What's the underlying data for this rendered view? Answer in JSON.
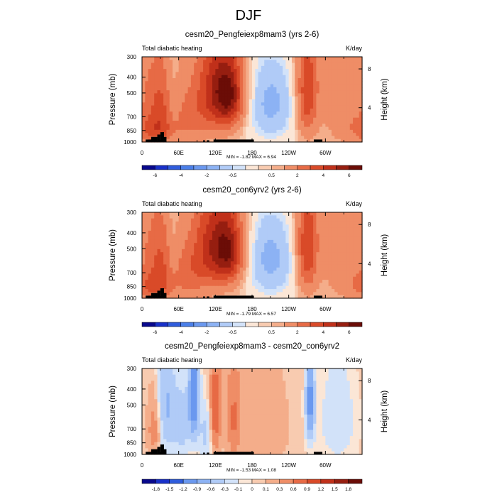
{
  "page_title": "DJF",
  "colors": {
    "blue_scale": [
      "#08088c",
      "#1830c8",
      "#2f5cdc",
      "#4a7ee8",
      "#6a98ef",
      "#8cb2f4",
      "#b0cbf7",
      "#d2e2f9"
    ],
    "red_scale": [
      "#fbe6d6",
      "#f8cbb0",
      "#f4ad8a",
      "#ef8d66",
      "#e76a45",
      "#d94a28",
      "#c0301a",
      "#961e10",
      "#6b0d07"
    ],
    "topography": "#000000"
  },
  "chart_data": [
    {
      "type": "heatmap",
      "title": "cesm20_Pengfeiexp8mam3 (yrs 2-6)",
      "left_label": "Total diabatic heating",
      "right_label": "K/day",
      "ylabel": "Pressure (mb)",
      "ylabel_right": "Height (km)",
      "x_tick_labels": [
        "0",
        "60E",
        "120E",
        "180",
        "120W",
        "60W"
      ],
      "x_ticks_deg": [
        0,
        60,
        120,
        180,
        240,
        300
      ],
      "xlim": [
        0,
        360
      ],
      "y_tick_labels": [
        "300",
        "400",
        "500",
        "700",
        "850",
        "1000"
      ],
      "y_ticks_mb": [
        300,
        400,
        500,
        700,
        850,
        1000
      ],
      "ylim": [
        1000,
        300
      ],
      "y_scale": "log",
      "right_tick_labels": [
        "8",
        "4"
      ],
      "stats": "MIN =  -1.82  MAX =   6.94",
      "colorbar_labels": [
        "-6",
        "-4",
        "-2",
        "-0.5",
        "0.5",
        "2",
        "4",
        "6"
      ],
      "colorbar_levels": [
        -6,
        -5,
        -4,
        -3,
        -2,
        -1,
        -0.5,
        -0.25,
        0.25,
        0.5,
        1,
        2,
        3,
        4,
        5,
        6
      ],
      "min": -1.82,
      "max": 6.94,
      "scale": 1.0,
      "features": [
        {
          "lon": 125,
          "p": 480,
          "amp": 4.2,
          "wlon": 24,
          "wp": 230
        },
        {
          "lon": 145,
          "p": 520,
          "amp": 3.2,
          "wlon": 16,
          "wp": 170
        },
        {
          "lon": 270,
          "p": 500,
          "amp": 3.5,
          "wlon": 12,
          "wp": 260
        },
        {
          "lon": 30,
          "p": 620,
          "amp": 2.6,
          "wlon": 18,
          "wp": 260
        },
        {
          "lon": 15,
          "p": 850,
          "amp": 1.8,
          "wlon": 28,
          "wp": 110
        },
        {
          "lon": 80,
          "p": 700,
          "amp": 1.4,
          "wlon": 20,
          "wp": 200
        },
        {
          "lon": 210,
          "p": 550,
          "amp": -1.8,
          "wlon": 35,
          "wp": 300
        },
        {
          "lon": 50,
          "p": 500,
          "amp": -0.9,
          "wlon": 8,
          "wp": 280
        },
        {
          "lon": 330,
          "p": 500,
          "amp": 1.2,
          "wlon": 25,
          "wp": 300
        }
      ]
    },
    {
      "type": "heatmap",
      "title": "cesm20_con6yrv2 (yrs 2-6)",
      "left_label": "Total diabatic heating",
      "right_label": "K/day",
      "ylabel": "Pressure (mb)",
      "ylabel_right": "Height (km)",
      "x_tick_labels": [
        "0",
        "60E",
        "120E",
        "180",
        "120W",
        "60W"
      ],
      "x_ticks_deg": [
        0,
        60,
        120,
        180,
        240,
        300
      ],
      "xlim": [
        0,
        360
      ],
      "y_tick_labels": [
        "300",
        "400",
        "500",
        "700",
        "850",
        "1000"
      ],
      "y_ticks_mb": [
        300,
        400,
        500,
        700,
        850,
        1000
      ],
      "ylim": [
        1000,
        300
      ],
      "y_scale": "log",
      "right_tick_labels": [
        "8",
        "4"
      ],
      "stats": "MIN =  -1.79  MAX =   6.57",
      "colorbar_labels": [
        "-6",
        "-4",
        "-2",
        "-0.5",
        "0.5",
        "2",
        "4",
        "6"
      ],
      "colorbar_levels": [
        -6,
        -5,
        -4,
        -3,
        -2,
        -1,
        -0.5,
        -0.25,
        0.25,
        0.5,
        1,
        2,
        3,
        4,
        5,
        6
      ],
      "min": -1.79,
      "max": 6.57,
      "scale": 1.0,
      "features": [
        {
          "lon": 120,
          "p": 480,
          "amp": 4.0,
          "wlon": 24,
          "wp": 230
        },
        {
          "lon": 145,
          "p": 520,
          "amp": 3.4,
          "wlon": 16,
          "wp": 170
        },
        {
          "lon": 270,
          "p": 500,
          "amp": 3.6,
          "wlon": 12,
          "wp": 260
        },
        {
          "lon": 30,
          "p": 620,
          "amp": 2.5,
          "wlon": 18,
          "wp": 260
        },
        {
          "lon": 15,
          "p": 850,
          "amp": 1.7,
          "wlon": 28,
          "wp": 110
        },
        {
          "lon": 80,
          "p": 700,
          "amp": 1.6,
          "wlon": 20,
          "wp": 200
        },
        {
          "lon": 210,
          "p": 550,
          "amp": -1.8,
          "wlon": 35,
          "wp": 300
        },
        {
          "lon": 50,
          "p": 500,
          "amp": -0.9,
          "wlon": 8,
          "wp": 280
        },
        {
          "lon": 330,
          "p": 500,
          "amp": 1.1,
          "wlon": 25,
          "wp": 300
        }
      ]
    },
    {
      "type": "heatmap",
      "title": "cesm20_Pengfeiexp8mam3 - cesm20_con6yrv2",
      "left_label": "Total diabatic heating",
      "right_label": "K/day",
      "ylabel": "Pressure (mb)",
      "ylabel_right": "Height (km)",
      "x_tick_labels": [
        "0",
        "60E",
        "120E",
        "180",
        "120W",
        "60W"
      ],
      "x_ticks_deg": [
        0,
        60,
        120,
        180,
        240,
        300
      ],
      "xlim": [
        0,
        360
      ],
      "y_tick_labels": [
        "300",
        "400",
        "500",
        "700",
        "850",
        "1000"
      ],
      "y_ticks_mb": [
        300,
        400,
        500,
        700,
        850,
        1000
      ],
      "ylim": [
        1000,
        300
      ],
      "y_scale": "log",
      "right_tick_labels": [
        "8",
        "4"
      ],
      "stats": "MIN =  -1.53  MAX =   1.08",
      "colorbar_labels": [
        "-1.8",
        "-1.5",
        "-1.2",
        "-0.9",
        "-0.6",
        "-0.3",
        "-0.1",
        "0",
        "0.1",
        "0.3",
        "0.6",
        "0.9",
        "1.2",
        "1.5",
        "1.8"
      ],
      "colorbar_levels": [
        -1.8,
        -1.5,
        -1.2,
        -0.9,
        -0.6,
        -0.3,
        -0.1,
        0,
        0.1,
        0.3,
        0.6,
        0.9,
        1.2,
        1.5,
        1.8
      ],
      "min": -1.53,
      "max": 1.08,
      "scale": 0.3,
      "features": [
        {
          "lon": 85,
          "p": 450,
          "amp": -4.2,
          "wlon": 6,
          "wp": 220
        },
        {
          "lon": 120,
          "p": 550,
          "amp": 3.0,
          "wlon": 6,
          "wp": 250
        },
        {
          "lon": 275,
          "p": 480,
          "amp": -3.8,
          "wlon": 5,
          "wp": 220
        },
        {
          "lon": 40,
          "p": 500,
          "amp": -2.2,
          "wlon": 10,
          "wp": 300
        },
        {
          "lon": 150,
          "p": 600,
          "amp": 2.0,
          "wlon": 8,
          "wp": 280
        },
        {
          "lon": 20,
          "p": 700,
          "amp": 1.5,
          "wlon": 8,
          "wp": 200
        },
        {
          "lon": 65,
          "p": 650,
          "amp": -1.6,
          "wlon": 10,
          "wp": 250
        },
        {
          "lon": 320,
          "p": 600,
          "amp": -1.0,
          "wlon": 20,
          "wp": 300
        },
        {
          "lon": 200,
          "p": 700,
          "amp": 0.8,
          "wlon": 25,
          "wp": 300
        },
        {
          "lon": 105,
          "p": 750,
          "amp": -1.4,
          "wlon": 8,
          "wp": 200
        }
      ]
    }
  ],
  "topography": [
    {
      "lon0": 6,
      "lon1": 15,
      "p": 965
    },
    {
      "lon0": 15,
      "lon1": 25,
      "p": 930
    },
    {
      "lon0": 25,
      "lon1": 30,
      "p": 900
    },
    {
      "lon0": 30,
      "lon1": 36,
      "p": 870
    },
    {
      "lon0": 36,
      "lon1": 40,
      "p": 930
    },
    {
      "lon0": 100,
      "lon1": 103,
      "p": 975
    },
    {
      "lon0": 106,
      "lon1": 110,
      "p": 975
    },
    {
      "lon0": 117,
      "lon1": 183,
      "p": 965
    },
    {
      "lon0": 281,
      "lon1": 295,
      "p": 965
    }
  ]
}
